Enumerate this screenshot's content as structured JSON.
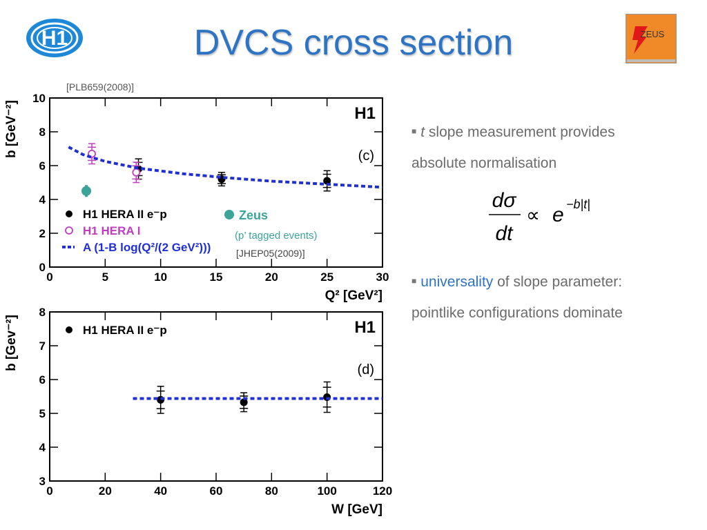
{
  "title": "DVCS cross section",
  "logos": {
    "left": "H1",
    "right": "ZEUS"
  },
  "reference_top": "[PLB659(2008)]",
  "bullets": [
    {
      "italic": "t",
      "text": " slope measurement provides",
      "line2": "absolute normalisation"
    },
    {
      "accent": "universality",
      "text": " of slope parameter:",
      "line2": "pointlike configurations dominate"
    }
  ],
  "formula": {
    "num": "dσ",
    "den": "dt",
    "prop": "∝",
    "base": "e",
    "exp": "−b|t|"
  },
  "colors": {
    "title": "#2e74c4",
    "zeus": "#3aa39a",
    "hera1": "#c03cc0",
    "fit": "#1f2fd8",
    "h1_data": "#000000"
  },
  "chart_data": [
    {
      "type": "scatter",
      "panel_label": "(c)",
      "experiment_label": "H1",
      "xlabel": "Q² [GeV²]",
      "ylabel": "b [GeV⁻²]",
      "xlim": [
        0,
        30
      ],
      "ylim": [
        0,
        10
      ],
      "xticks": [
        0,
        5,
        10,
        15,
        20,
        25,
        30
      ],
      "yticks": [
        0,
        2,
        4,
        6,
        8,
        10
      ],
      "legend_position": "lower-left",
      "series": [
        {
          "name": "H1 HERA II e⁻p",
          "marker": "filled-circle",
          "color": "#000000",
          "points": [
            {
              "x": 8.0,
              "y": 5.8,
              "err": 0.6
            },
            {
              "x": 15.5,
              "y": 5.2,
              "err": 0.4
            },
            {
              "x": 25.0,
              "y": 5.1,
              "err": 0.6
            }
          ]
        },
        {
          "name": "H1 HERA I",
          "marker": "open-circle",
          "color": "#c03cc0",
          "points": [
            {
              "x": 3.8,
              "y": 6.7,
              "err": 0.6
            },
            {
              "x": 7.8,
              "y": 5.6,
              "err": 0.6
            }
          ]
        },
        {
          "name": "A (1-B log(Q²/(2 GeV²)))",
          "marker": "dashed-line",
          "color": "#1f2fd8",
          "curve": [
            {
              "x": 1.7,
              "y": 7.1
            },
            {
              "x": 3,
              "y": 6.65
            },
            {
              "x": 5,
              "y": 6.25
            },
            {
              "x": 8,
              "y": 5.85
            },
            {
              "x": 12,
              "y": 5.52
            },
            {
              "x": 16,
              "y": 5.28
            },
            {
              "x": 20,
              "y": 5.08
            },
            {
              "x": 25,
              "y": 4.9
            },
            {
              "x": 30,
              "y": 4.72
            }
          ]
        }
      ],
      "annotations": [
        {
          "text": "Zeus",
          "subtext": "(p’ tagged events)",
          "reference": "[JHEP05(2009)]",
          "x": 3.3,
          "y": 4.5,
          "err": 0.7
        }
      ]
    },
    {
      "type": "scatter",
      "panel_label": "(d)",
      "experiment_label": "H1",
      "xlabel": "W [GeV]",
      "ylabel": "b [Gev⁻²]",
      "xlim": [
        0,
        120
      ],
      "ylim": [
        3,
        8
      ],
      "xticks": [
        0,
        20,
        40,
        60,
        80,
        100,
        120
      ],
      "yticks": [
        3,
        4,
        5,
        6,
        7,
        8
      ],
      "legend_position": "upper-left",
      "series": [
        {
          "name": "H1 HERA II e⁻p",
          "marker": "filled-circle",
          "color": "#000000",
          "points": [
            {
              "x": 40,
              "y": 5.4,
              "err": 0.4
            },
            {
              "x": 70,
              "y": 5.33,
              "err": 0.28
            },
            {
              "x": 100,
              "y": 5.48,
              "err": 0.45
            }
          ]
        },
        {
          "name": "",
          "marker": "dashed-line",
          "color": "#1f2fd8",
          "curve": [
            {
              "x": 30,
              "y": 5.44
            },
            {
              "x": 120,
              "y": 5.44
            }
          ]
        }
      ]
    }
  ]
}
